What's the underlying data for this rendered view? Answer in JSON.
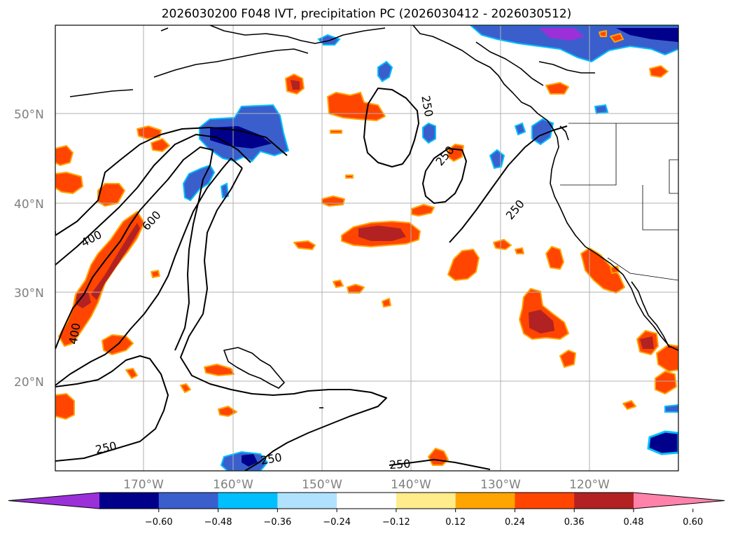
{
  "title": "2026030200 F048 IVT, precipitation PC (2026030412 - 2026030512)",
  "lat_labels": [
    {
      "text": "50°N",
      "lat": 50
    },
    {
      "text": "40°N",
      "lat": 40
    },
    {
      "text": "30°N",
      "lat": 30
    },
    {
      "text": "20°N",
      "lat": 20
    }
  ],
  "lon_labels": [
    {
      "text": "170°W",
      "lon": -170
    },
    {
      "text": "160°W",
      "lon": -160
    },
    {
      "text": "150°W",
      "lon": -150
    },
    {
      "text": "140°W",
      "lon": -140
    },
    {
      "text": "130°W",
      "lon": -130
    },
    {
      "text": "120°W",
      "lon": -120
    }
  ],
  "colorbar": {
    "ticks": [
      "−0.60",
      "−0.48",
      "−0.36",
      "−0.24",
      "−0.12",
      "0.12",
      "0.24",
      "0.36",
      "0.48",
      "0.60"
    ],
    "colors": [
      "#9b30d9",
      "#00008b",
      "#3a5fcd",
      "#00bfff",
      "#b0e2ff",
      "#ffffff",
      "#ffec8b",
      "#ffa500",
      "#ff4500",
      "#b22222",
      "#ff82ab"
    ]
  },
  "contour_labels": [
    "250",
    "250",
    "250",
    "400",
    "600",
    "400",
    "250",
    "250",
    "250"
  ]
}
